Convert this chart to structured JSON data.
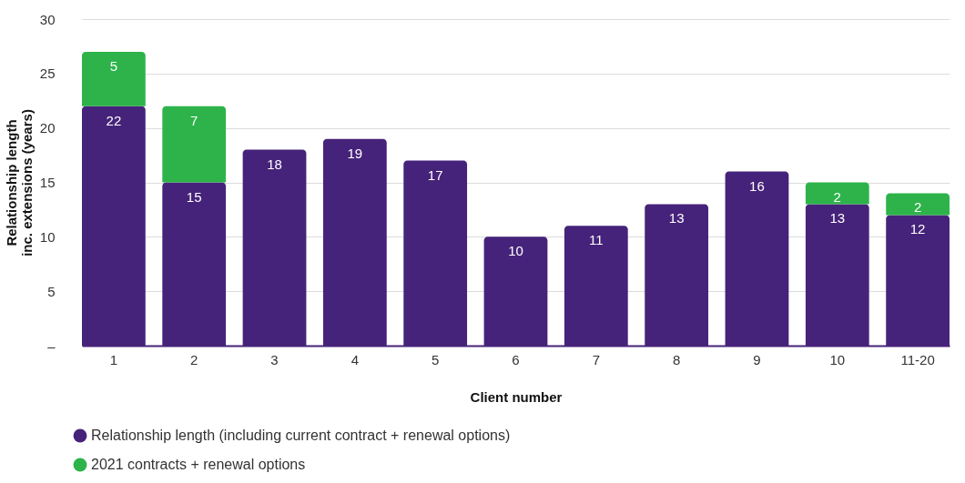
{
  "chart_data": {
    "type": "bar",
    "stacked": true,
    "xlabel": "Client number",
    "ylabel": "Relationship length inc. extensions (years)",
    "categories": [
      "1",
      "2",
      "3",
      "4",
      "5",
      "6",
      "7",
      "8",
      "9",
      "10",
      "11-20"
    ],
    "series": [
      {
        "name": "Relationship length (including current contract + renewal options)",
        "color": "#46237a",
        "values": [
          22,
          15,
          18,
          19,
          17,
          10,
          11,
          13,
          16,
          13,
          12
        ]
      },
      {
        "name": "2021 contracts + renewal options",
        "color": "#2db34a",
        "values": [
          5,
          7,
          null,
          null,
          null,
          null,
          null,
          null,
          null,
          2,
          2
        ]
      }
    ],
    "ylim": [
      0,
      30
    ],
    "yticks": [
      {
        "value": 0,
        "label": "–"
      },
      5,
      10,
      15,
      20,
      25,
      30
    ],
    "grid": "y",
    "legend": "bottom",
    "data_labels": true
  }
}
